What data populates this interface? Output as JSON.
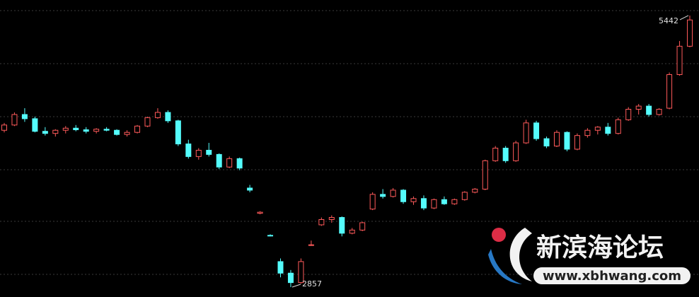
{
  "chart_data": {
    "type": "candlestick",
    "up_color": "#ff5a5a",
    "down_color": "#54fcfc",
    "ylim": [
      2763,
      5590
    ],
    "open": [
      4350,
      4400,
      4500,
      4460,
      4340,
      4320,
      4350,
      4370,
      4355,
      4340,
      4360,
      4350,
      4310,
      4330,
      4390,
      4470,
      4520,
      4440,
      4220,
      4100,
      4160,
      4120,
      4000,
      4080,
      3800,
      3560,
      3350,
      3100,
      2990,
      2900,
      3260,
      3450,
      3500,
      3520,
      3370,
      3400,
      3600,
      3740,
      3720,
      3780,
      3670,
      3700,
      3610,
      3690,
      3650,
      3690,
      3760,
      3790,
      4060,
      4180,
      4060,
      4230,
      4420,
      4270,
      4200,
      4330,
      4170,
      4300,
      4350,
      4380,
      4320,
      4450,
      4550,
      4580,
      4500,
      4560,
      4880,
      5150
    ],
    "high": [
      4420,
      4520,
      4560,
      4480,
      4380,
      4360,
      4390,
      4400,
      4380,
      4370,
      4380,
      4360,
      4350,
      4400,
      4480,
      4560,
      4540,
      4450,
      4260,
      4180,
      4230,
      4130,
      4100,
      4090,
      3830,
      3580,
      3360,
      3130,
      3020,
      3130,
      3300,
      3520,
      3540,
      3530,
      3420,
      3480,
      3760,
      3790,
      3800,
      3790,
      3720,
      3730,
      3700,
      3720,
      3700,
      3770,
      3800,
      4070,
      4200,
      4200,
      4250,
      4450,
      4440,
      4290,
      4350,
      4340,
      4320,
      4370,
      4390,
      4420,
      4470,
      4570,
      4600,
      4600,
      4560,
      4900,
      5200,
      5442
    ],
    "low": [
      4330,
      4390,
      4430,
      4330,
      4300,
      4290,
      4320,
      4340,
      4320,
      4320,
      4340,
      4300,
      4290,
      4320,
      4380,
      4460,
      4420,
      4200,
      4080,
      4070,
      4100,
      3980,
      3990,
      3970,
      3760,
      3550,
      3340,
      2950,
      2857,
      2890,
      3250,
      3440,
      3470,
      3340,
      3360,
      3390,
      3590,
      3700,
      3710,
      3650,
      3640,
      3590,
      3600,
      3640,
      3640,
      3680,
      3750,
      3780,
      4050,
      4040,
      4050,
      4220,
      4250,
      4180,
      4190,
      4150,
      4160,
      4280,
      4310,
      4300,
      4310,
      4440,
      4500,
      4480,
      4490,
      4550,
      4870,
      5140
    ],
    "close": [
      4400,
      4500,
      4460,
      4340,
      4320,
      4350,
      4370,
      4355,
      4340,
      4360,
      4350,
      4310,
      4330,
      4390,
      4470,
      4520,
      4440,
      4220,
      4100,
      4160,
      4120,
      4000,
      4080,
      3990,
      3780,
      3570,
      3345,
      2990,
      2900,
      3100,
      3260,
      3500,
      3520,
      3370,
      3400,
      3470,
      3740,
      3720,
      3780,
      3670,
      3700,
      3610,
      3690,
      3650,
      3690,
      3760,
      3790,
      4060,
      4180,
      4060,
      4230,
      4420,
      4270,
      4200,
      4330,
      4170,
      4300,
      4350,
      4380,
      4320,
      4450,
      4550,
      4580,
      4500,
      4550,
      4880,
      5150,
      5400
    ]
  },
  "watermark": {
    "title": "新滨海论坛",
    "url": "www.xbhwang.com"
  }
}
